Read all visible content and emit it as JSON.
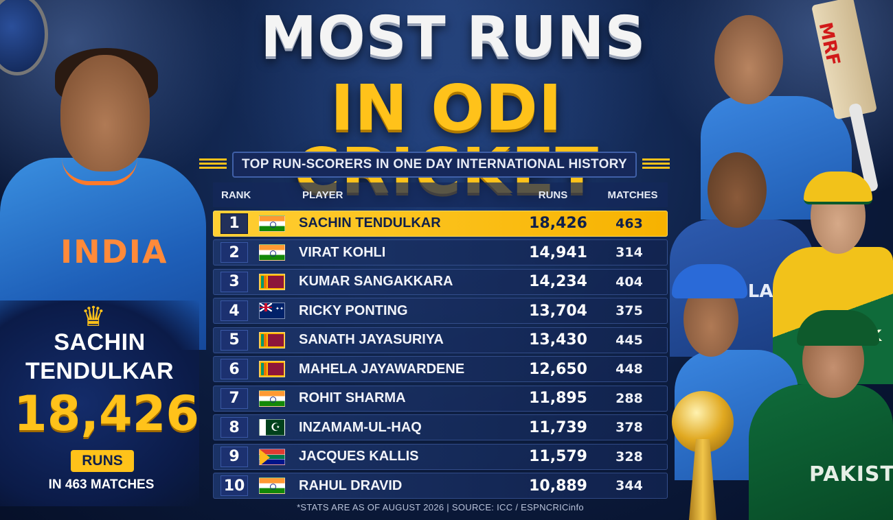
{
  "title": {
    "line1": "MOST RUNS",
    "line2": "IN ODI CRICKET",
    "subtitle": "TOP RUN-SCORERS IN ONE DAY INTERNATIONAL HISTORY"
  },
  "table": {
    "headers": {
      "rank": "RANK",
      "player": "PLAYER",
      "runs": "RUNS",
      "matches": "MATCHES"
    },
    "rows": [
      {
        "rank": "1",
        "flag": "india",
        "player": "SACHIN TENDULKAR",
        "runs": "18,426",
        "matches": "463",
        "highlight": true
      },
      {
        "rank": "2",
        "flag": "india",
        "player": "VIRAT KOHLI",
        "runs": "14,941",
        "matches": "314"
      },
      {
        "rank": "3",
        "flag": "sri-lanka",
        "player": "KUMAR SANGAKKARA",
        "runs": "14,234",
        "matches": "404"
      },
      {
        "rank": "4",
        "flag": "australia",
        "player": "RICKY PONTING",
        "runs": "13,704",
        "matches": "375"
      },
      {
        "rank": "5",
        "flag": "sri-lanka",
        "player": "SANATH JAYASURIYA",
        "runs": "13,430",
        "matches": "445"
      },
      {
        "rank": "6",
        "flag": "sri-lanka",
        "player": "MAHELA JAYAWARDENE",
        "runs": "12,650",
        "matches": "448"
      },
      {
        "rank": "7",
        "flag": "india",
        "player": "ROHIT SHARMA",
        "runs": "11,895",
        "matches": "288"
      },
      {
        "rank": "8",
        "flag": "pakistan",
        "player": "INZAMAM-UL-HAQ",
        "runs": "11,739",
        "matches": "378"
      },
      {
        "rank": "9",
        "flag": "south-africa",
        "player": "JACQUES KALLIS",
        "runs": "11,579",
        "matches": "328"
      },
      {
        "rank": "10",
        "flag": "india",
        "player": "RAHUL DRAVID",
        "runs": "10,889",
        "matches": "344"
      }
    ]
  },
  "footer": "*STATS ARE AS OF AUGUST 2026  |  SOURCE: ICC / ESPNCRICinfo",
  "feature": {
    "crown_icon": "crown-icon",
    "name_line1": "SACHIN",
    "name_line2": "TENDULKAR",
    "runs": "18,426",
    "runs_label": "RUNS",
    "matches": "IN 463 MATCHES",
    "jersey_text": "INDIA"
  },
  "right_panel": {
    "bat_brand": "MRF",
    "jersey_sri_lanka": "-LAN",
    "jersey_australia": "NK",
    "jersey_pakistan": "PAKISTAA"
  },
  "colors": {
    "accent_gold": "#ffc21a",
    "background_navy": "#0c1c3e",
    "row_highlight": "#f7b200"
  }
}
